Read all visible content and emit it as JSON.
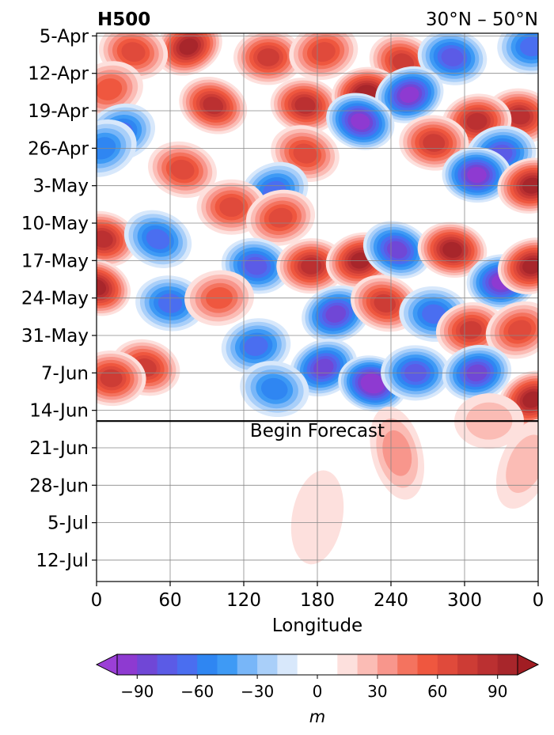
{
  "chart_data": {
    "type": "heatmap",
    "title": "H500",
    "subtitle": "30°N – 50°N",
    "xlabel": "Longitude",
    "ylabel": "",
    "x_ticks": [
      "0",
      "60",
      "120",
      "180",
      "240",
      "300",
      "0"
    ],
    "x_tick_values": [
      0,
      60,
      120,
      180,
      240,
      300,
      360
    ],
    "xlim": [
      0,
      360
    ],
    "y_ticks": [
      "5-Apr",
      "12-Apr",
      "19-Apr",
      "26-Apr",
      "3-May",
      "10-May",
      "17-May",
      "24-May",
      "31-May",
      "7-Jun",
      "14-Jun",
      "21-Jun",
      "28-Jun",
      "5-Jul",
      "12-Jul"
    ],
    "y_tick_days": [
      0,
      7,
      14,
      21,
      28,
      35,
      42,
      49,
      56,
      63,
      70,
      77,
      84,
      91,
      98
    ],
    "ylim_days": [
      -0.5,
      102
    ],
    "grid": true,
    "annotation": {
      "text": "Begin Forecast",
      "date": "16-Jun",
      "day": 72
    },
    "colorbar": {
      "label": "m",
      "ticks": [
        "−90",
        "−60",
        "−30",
        "0",
        "30",
        "60",
        "90"
      ],
      "tick_values": [
        -90,
        -60,
        -30,
        0,
        30,
        60,
        90
      ],
      "levels": [
        -100,
        -90,
        -80,
        -70,
        -60,
        -50,
        -40,
        -30,
        -20,
        -10,
        10,
        20,
        30,
        40,
        50,
        60,
        70,
        80,
        90,
        100
      ],
      "colors": [
        "#8e3ad1",
        "#7047d6",
        "#5b5be6",
        "#4a6ef0",
        "#2f86f2",
        "#3e9af5",
        "#78b6f8",
        "#a9cff9",
        "#d8e8fb",
        "#ffffff",
        "#fde0dd",
        "#fbbcb5",
        "#f8968c",
        "#f4735f",
        "#ef573f",
        "#e04a3b",
        "#cd3c35",
        "#bb3031",
        "#a8262b"
      ],
      "extend": "both"
    },
    "series": [
      {
        "name": "",
        "type": "anomaly-blobs",
        "values": [
          {
            "lon": 75,
            "day": 2,
            "value": 85
          },
          {
            "lon": 30,
            "day": 3,
            "value": 55
          },
          {
            "lon": 140,
            "day": 4,
            "value": 70
          },
          {
            "lon": 185,
            "day": 3,
            "value": 55
          },
          {
            "lon": 250,
            "day": 5,
            "value": 70
          },
          {
            "lon": 290,
            "day": 4,
            "value": -70
          },
          {
            "lon": 355,
            "day": 2,
            "value": -60
          },
          {
            "lon": 10,
            "day": 10,
            "value": 45
          },
          {
            "lon": 95,
            "day": 13,
            "value": 80
          },
          {
            "lon": 170,
            "day": 13,
            "value": 75
          },
          {
            "lon": 220,
            "day": 11,
            "value": 95
          },
          {
            "lon": 255,
            "day": 11,
            "value": -85
          },
          {
            "lon": 215,
            "day": 16,
            "value": -90
          },
          {
            "lon": 345,
            "day": 15,
            "value": 80
          },
          {
            "lon": 310,
            "day": 16,
            "value": 75
          },
          {
            "lon": 20,
            "day": 18,
            "value": -55
          },
          {
            "lon": 170,
            "day": 22,
            "value": 60
          },
          {
            "lon": 275,
            "day": 20,
            "value": 70
          },
          {
            "lon": 330,
            "day": 22,
            "value": -65
          },
          {
            "lon": 5,
            "day": 21,
            "value": -50
          },
          {
            "lon": 70,
            "day": 25,
            "value": 55
          },
          {
            "lon": 310,
            "day": 26,
            "value": -85
          },
          {
            "lon": 355,
            "day": 28,
            "value": 90
          },
          {
            "lon": 145,
            "day": 29,
            "value": -55
          },
          {
            "lon": 5,
            "day": 38,
            "value": 75
          },
          {
            "lon": 110,
            "day": 32,
            "value": 60
          },
          {
            "lon": 150,
            "day": 34,
            "value": 55
          },
          {
            "lon": 50,
            "day": 38,
            "value": -55
          },
          {
            "lon": 130,
            "day": 43,
            "value": -65
          },
          {
            "lon": 175,
            "day": 43,
            "value": 75
          },
          {
            "lon": 215,
            "day": 42,
            "value": 85
          },
          {
            "lon": 245,
            "day": 40,
            "value": -75
          },
          {
            "lon": 290,
            "day": 40,
            "value": 90
          },
          {
            "lon": 330,
            "day": 46,
            "value": -90
          },
          {
            "lon": 355,
            "day": 43,
            "value": 85
          },
          {
            "lon": 0,
            "day": 47,
            "value": 85
          },
          {
            "lon": 60,
            "day": 50,
            "value": -60
          },
          {
            "lon": 100,
            "day": 49,
            "value": 50
          },
          {
            "lon": 195,
            "day": 52,
            "value": -75
          },
          {
            "lon": 235,
            "day": 50,
            "value": 65
          },
          {
            "lon": 275,
            "day": 52,
            "value": -60
          },
          {
            "lon": 305,
            "day": 55,
            "value": 70
          },
          {
            "lon": 345,
            "day": 55,
            "value": 60
          },
          {
            "lon": 40,
            "day": 62,
            "value": 70
          },
          {
            "lon": 12,
            "day": 64,
            "value": 65
          },
          {
            "lon": 130,
            "day": 58,
            "value": -55
          },
          {
            "lon": 185,
            "day": 62,
            "value": -80
          },
          {
            "lon": 225,
            "day": 65,
            "value": -95
          },
          {
            "lon": 260,
            "day": 63,
            "value": -70
          },
          {
            "lon": 310,
            "day": 63,
            "value": -75
          },
          {
            "lon": 355,
            "day": 68,
            "value": 85
          },
          {
            "lon": 145,
            "day": 66,
            "value": -45
          },
          {
            "lon": 320,
            "day": 72,
            "value": 15
          },
          {
            "lon": 245,
            "day": 78,
            "value": 25
          },
          {
            "lon": 350,
            "day": 80,
            "value": 15
          },
          {
            "lon": 180,
            "day": 90,
            "value": 12
          }
        ]
      }
    ]
  }
}
